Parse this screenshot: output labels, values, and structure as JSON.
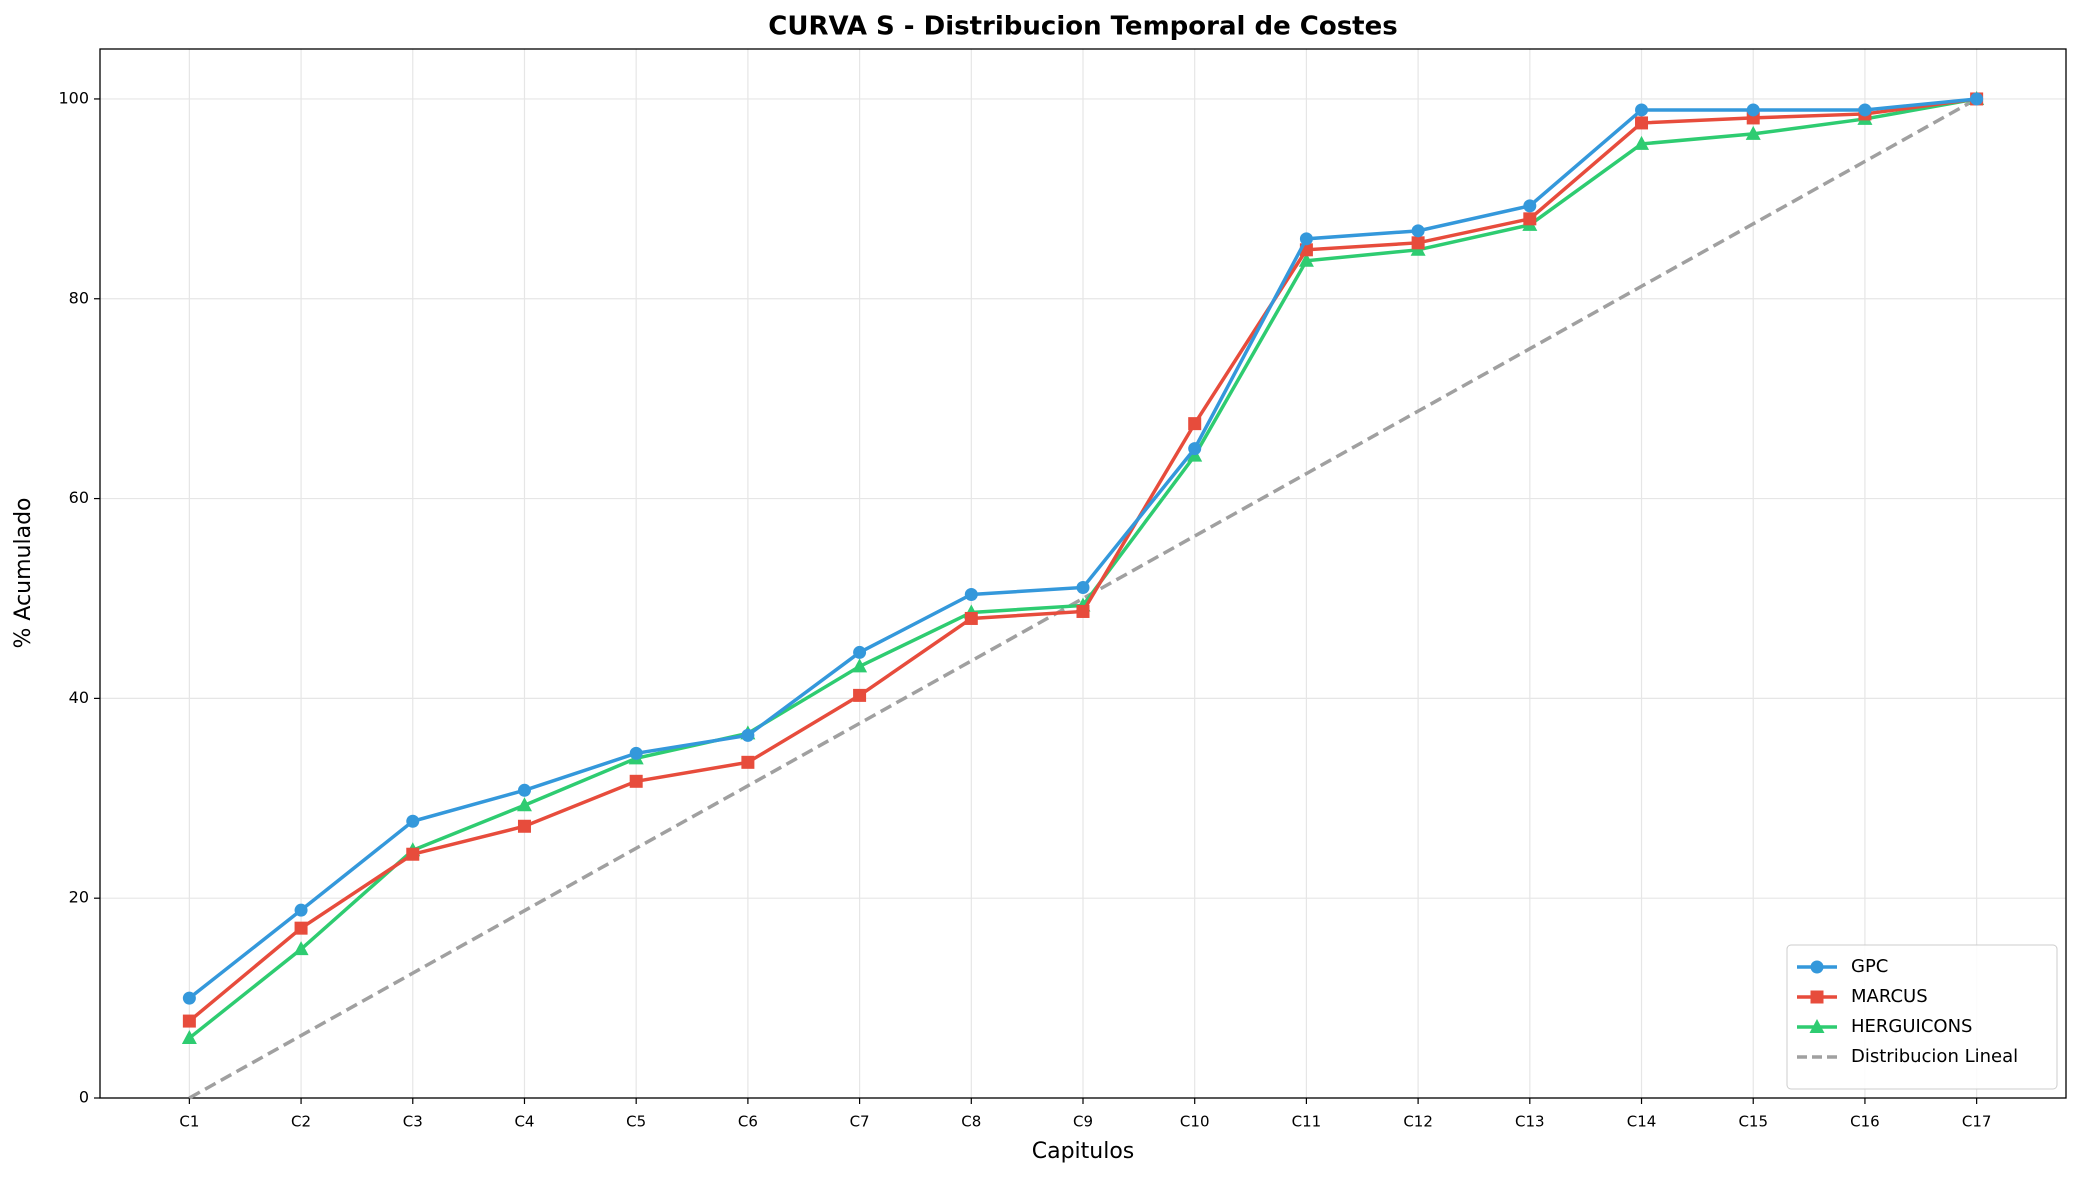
{
  "chart_data": {
    "type": "line",
    "title": "CURVA S - Distribucion Temporal de Costes",
    "x_label": "Capitulos",
    "y_label": "% Acumulado",
    "categories": [
      "C1",
      "C2",
      "C3",
      "C4",
      "C5",
      "C6",
      "C7",
      "C8",
      "C9",
      "C10",
      "C11",
      "C12",
      "C13",
      "C14",
      "C15",
      "C16",
      "C17"
    ],
    "series": [
      {
        "name": "GPC",
        "color": "#3498db",
        "marker": "circle",
        "linestyle": "solid",
        "values": [
          10.0,
          18.8,
          27.7,
          30.8,
          34.5,
          36.3,
          44.6,
          50.4,
          51.1,
          65.0,
          86.0,
          86.8,
          89.3,
          98.9,
          98.9,
          98.9,
          100
        ]
      },
      {
        "name": "MARCUS",
        "color": "#e74c3c",
        "marker": "square",
        "linestyle": "solid",
        "values": [
          7.7,
          17.0,
          24.4,
          27.2,
          31.7,
          33.6,
          40.3,
          48.0,
          48.7,
          67.5,
          84.9,
          85.6,
          88.0,
          97.6,
          98.1,
          98.5,
          100
        ]
      },
      {
        "name": "HERGUICONS",
        "color": "#2ecc71",
        "marker": "triangle",
        "linestyle": "solid",
        "values": [
          6.0,
          14.9,
          24.8,
          29.3,
          34.0,
          36.5,
          43.2,
          48.6,
          49.3,
          64.3,
          83.8,
          84.9,
          87.4,
          95.5,
          96.5,
          98.0,
          100
        ]
      },
      {
        "name": "Distribucion Lineal",
        "color": "#a0a0a0",
        "marker": "none",
        "linestyle": "dashed",
        "values": [
          0,
          6.25,
          12.5,
          18.75,
          25,
          31.25,
          37.5,
          43.75,
          50,
          56.25,
          62.5,
          68.75,
          75,
          81.25,
          87.5,
          93.75,
          100
        ]
      }
    ],
    "ylim": [
      0,
      105
    ],
    "yticks": [
      0,
      20,
      40,
      60,
      80,
      100
    ],
    "grid": true,
    "legend": "lower right"
  }
}
